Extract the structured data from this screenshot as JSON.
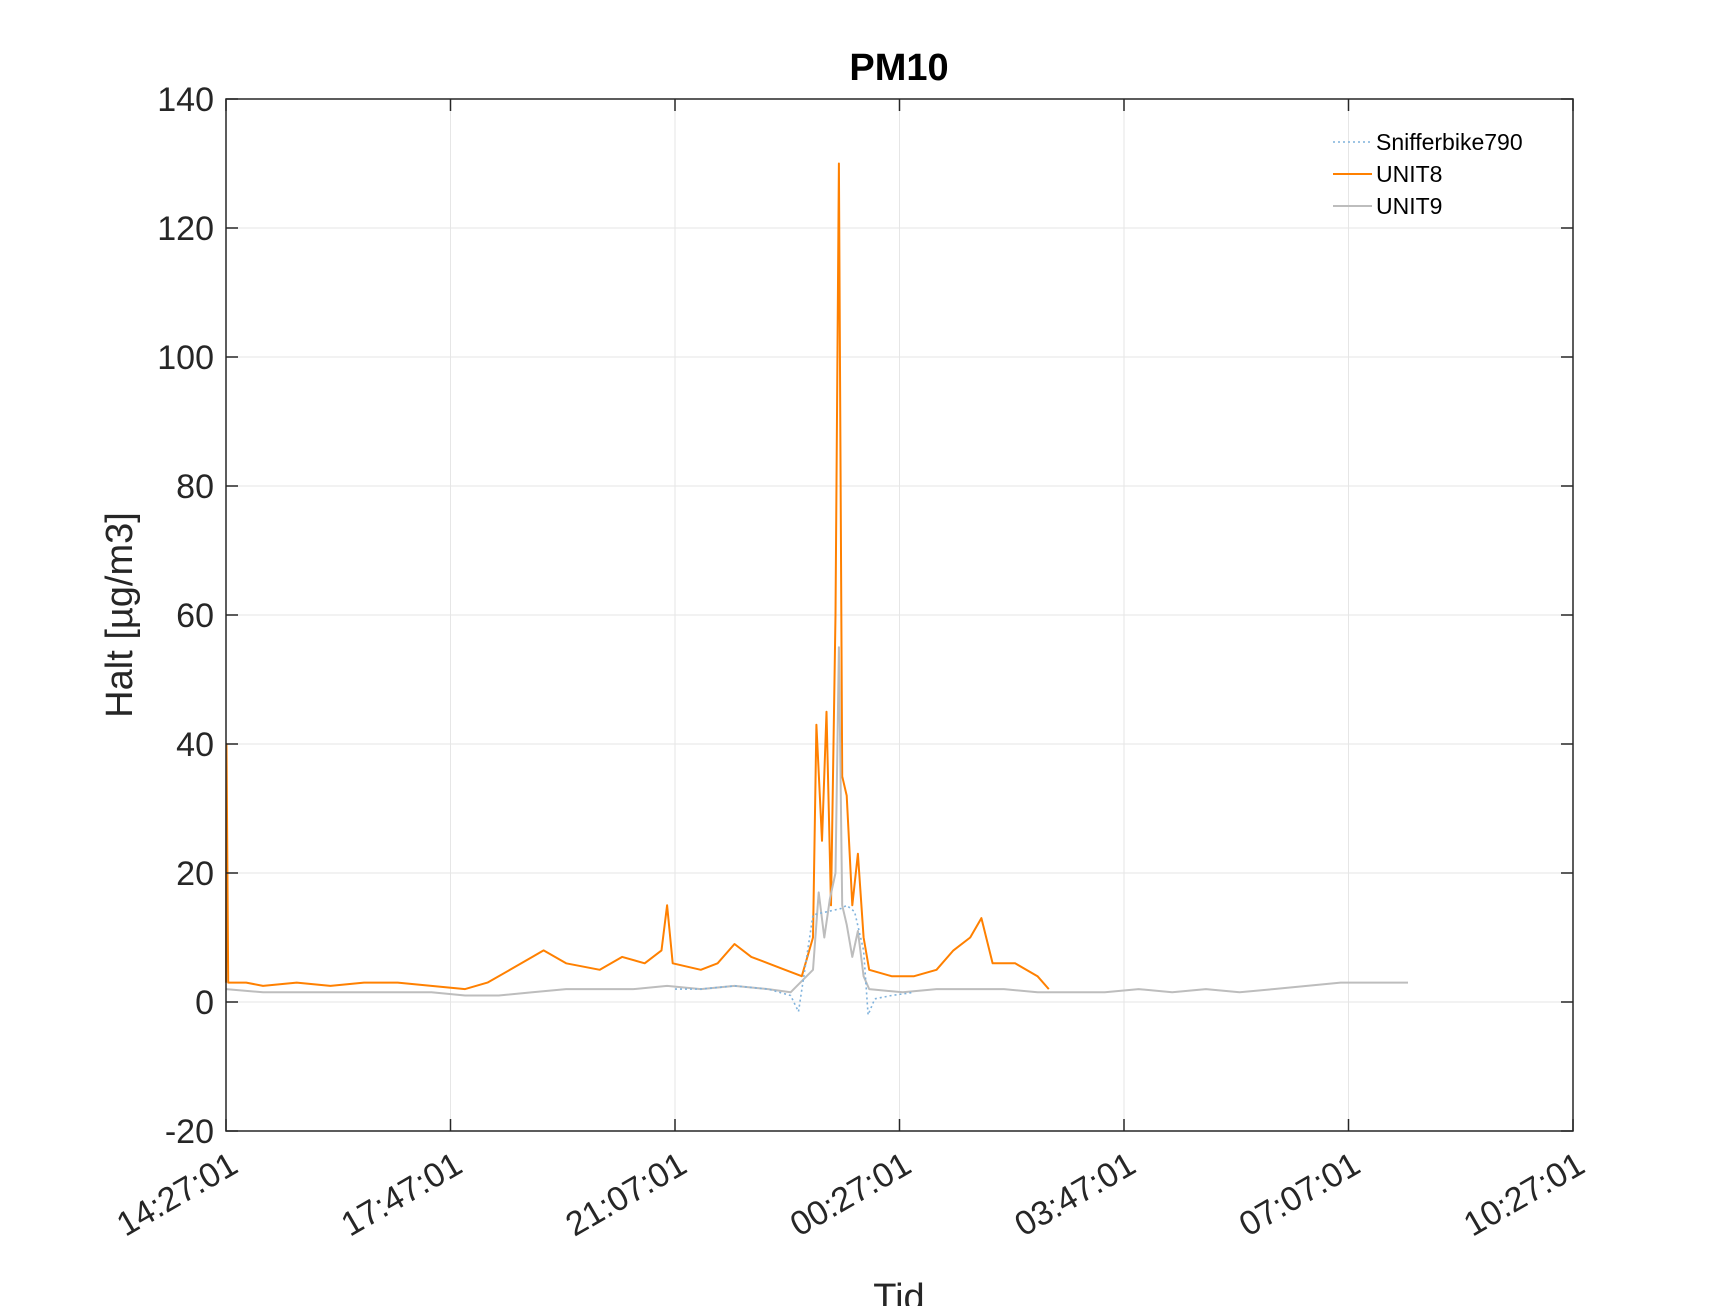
{
  "chart_data": {
    "type": "line",
    "title": "PM10",
    "xlabel": "Tid",
    "ylabel": "Halt [µg/m3]",
    "x_unit": "time (HH:MM:SS), starting 14:27:01 and wrapping past midnight",
    "xlim": [
      "14:27:01",
      "10:27:01"
    ],
    "ylim": [
      -20,
      140
    ],
    "x_ticks": [
      "14:27:01",
      "17:47:01",
      "21:07:01",
      "00:27:01",
      "03:47:01",
      "07:07:01",
      "10:27:01"
    ],
    "y_ticks": [
      -20,
      0,
      20,
      40,
      60,
      80,
      100,
      120,
      140
    ],
    "grid": true,
    "legend_position": "top-right",
    "colors": {
      "Snifferbike790": "#7fb2dc",
      "UNIT8": "#ff8000",
      "UNIT9": "#bdbdbd",
      "axes": "#262626",
      "grid": "#e6e6e6"
    },
    "series": [
      {
        "name": "Snifferbike790",
        "style": "dotted",
        "points": [
          [
            "21:07:01",
            2
          ],
          [
            "21:30:00",
            2
          ],
          [
            "22:00:00",
            2.5
          ],
          [
            "22:30:00",
            2
          ],
          [
            "22:50:00",
            1
          ],
          [
            "22:57:00",
            -1.5
          ],
          [
            "23:10:00",
            13.5
          ],
          [
            "23:35:00",
            14.5
          ],
          [
            "23:40:00",
            15
          ],
          [
            "23:47:00",
            14
          ],
          [
            "23:55:00",
            8
          ],
          [
            "23:59:00",
            -2
          ],
          [
            "00:05:00",
            0.5
          ],
          [
            "00:20:00",
            1
          ],
          [
            "00:40:00",
            1.5
          ]
        ]
      },
      {
        "name": "UNIT8",
        "style": "solid",
        "points": [
          [
            "14:27:01",
            3
          ],
          [
            "14:27:30",
            40
          ],
          [
            "14:29:00",
            3
          ],
          [
            "14:45:00",
            3
          ],
          [
            "15:00:00",
            2.5
          ],
          [
            "15:30:00",
            3
          ],
          [
            "16:00:00",
            2.5
          ],
          [
            "16:30:00",
            3
          ],
          [
            "17:00:00",
            3
          ],
          [
            "17:30:00",
            2.5
          ],
          [
            "18:00:00",
            2
          ],
          [
            "18:20:00",
            3
          ],
          [
            "18:40:00",
            5
          ],
          [
            "19:00:00",
            7
          ],
          [
            "19:10:00",
            8
          ],
          [
            "19:30:00",
            6
          ],
          [
            "20:00:00",
            5
          ],
          [
            "20:20:00",
            7
          ],
          [
            "20:40:00",
            6
          ],
          [
            "20:55:00",
            8
          ],
          [
            "21:00:00",
            15
          ],
          [
            "21:05:00",
            6
          ],
          [
            "21:30:00",
            5
          ],
          [
            "21:45:00",
            6
          ],
          [
            "22:00:00",
            9
          ],
          [
            "22:15:00",
            7
          ],
          [
            "22:30:00",
            6
          ],
          [
            "22:45:00",
            5
          ],
          [
            "23:00:00",
            4
          ],
          [
            "23:10:00",
            10
          ],
          [
            "23:13:00",
            43
          ],
          [
            "23:18:00",
            25
          ],
          [
            "23:22:00",
            45
          ],
          [
            "23:26:00",
            15
          ],
          [
            "23:30:00",
            60
          ],
          [
            "23:33:00",
            130
          ],
          [
            "23:36:00",
            35
          ],
          [
            "23:40:00",
            32
          ],
          [
            "23:45:00",
            15
          ],
          [
            "23:50:00",
            23
          ],
          [
            "23:55:00",
            10
          ],
          [
            "00:00:00",
            5
          ],
          [
            "00:20:00",
            4
          ],
          [
            "00:40:00",
            4
          ],
          [
            "01:00:00",
            5
          ],
          [
            "01:15:00",
            8
          ],
          [
            "01:30:00",
            10
          ],
          [
            "01:40:00",
            13
          ],
          [
            "01:50:00",
            6
          ],
          [
            "02:10:00",
            6
          ],
          [
            "02:30:00",
            4
          ],
          [
            "02:40:00",
            2
          ]
        ]
      },
      {
        "name": "UNIT9",
        "style": "solid",
        "points": [
          [
            "14:27:01",
            2
          ],
          [
            "15:00:00",
            1.5
          ],
          [
            "15:30:00",
            1.5
          ],
          [
            "16:00:00",
            1.5
          ],
          [
            "16:30:00",
            1.5
          ],
          [
            "17:00:00",
            1.5
          ],
          [
            "17:30:00",
            1.5
          ],
          [
            "18:00:00",
            1
          ],
          [
            "18:30:00",
            1
          ],
          [
            "19:00:00",
            1.5
          ],
          [
            "19:30:00",
            2
          ],
          [
            "20:00:00",
            2
          ],
          [
            "20:30:00",
            2
          ],
          [
            "21:00:00",
            2.5
          ],
          [
            "21:30:00",
            2
          ],
          [
            "22:00:00",
            2.5
          ],
          [
            "22:30:00",
            2
          ],
          [
            "22:50:00",
            1.5
          ],
          [
            "23:10:00",
            5
          ],
          [
            "23:15:00",
            17
          ],
          [
            "23:20:00",
            10
          ],
          [
            "23:25:00",
            16
          ],
          [
            "23:30:00",
            20
          ],
          [
            "23:33:00",
            55
          ],
          [
            "23:36:00",
            15
          ],
          [
            "23:40:00",
            12
          ],
          [
            "23:45:00",
            7
          ],
          [
            "23:50:00",
            11
          ],
          [
            "23:55:00",
            4
          ],
          [
            "00:00:00",
            2
          ],
          [
            "00:30:00",
            1.5
          ],
          [
            "01:00:00",
            2
          ],
          [
            "01:30:00",
            2
          ],
          [
            "02:00:00",
            2
          ],
          [
            "02:30:00",
            1.5
          ],
          [
            "03:00:00",
            1.5
          ],
          [
            "03:30:00",
            1.5
          ],
          [
            "04:00:00",
            2
          ],
          [
            "04:30:00",
            1.5
          ],
          [
            "05:00:00",
            2
          ],
          [
            "05:30:00",
            1.5
          ],
          [
            "06:00:00",
            2
          ],
          [
            "06:30:00",
            2.5
          ],
          [
            "07:00:00",
            3
          ],
          [
            "07:30:00",
            3
          ],
          [
            "08:00:00",
            3
          ]
        ]
      }
    ]
  }
}
